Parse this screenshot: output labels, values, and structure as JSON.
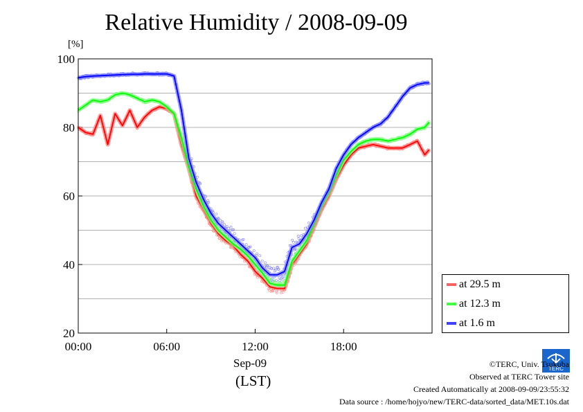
{
  "title": "Relative Humidity / 2008-09-09",
  "ylabel_unit": "[%]",
  "x_date": "Sep-09",
  "x_zone": "(LST)",
  "footer": {
    "copyright": "©TERC, Univ. Tsukuba",
    "site": "Observed at TERC Tower site",
    "created": "Created Automatically at 2008-09-09/23:55:32",
    "source": "Data source : /home/hojyo/new/TERC-data/sorted_data/MET.10s.dat"
  },
  "logo_text": "TERC",
  "chart_data": {
    "type": "line",
    "title": "Relative Humidity / 2008-09-09",
    "ylabel": "[%]",
    "xlabel": "Sep-09 (LST)",
    "xlim": [
      0,
      24
    ],
    "ylim": [
      20,
      100
    ],
    "x_ticks": [
      0,
      6,
      12,
      18
    ],
    "x_tick_labels": [
      "00:00",
      "06:00",
      "12:00",
      "18:00"
    ],
    "y_ticks": [
      20,
      40,
      60,
      80,
      100
    ],
    "y_tick_labels": [
      "20",
      "40",
      "60",
      "80",
      "100"
    ],
    "grid": "horizontal",
    "legend_position": "bottom-right, outside",
    "x": [
      0,
      0.5,
      1,
      1.5,
      2,
      2.5,
      3,
      3.5,
      4,
      4.5,
      5,
      5.5,
      6,
      6.5,
      7,
      7.5,
      8,
      8.5,
      9,
      9.5,
      10,
      10.5,
      11,
      11.5,
      12,
      12.5,
      13,
      13.5,
      14,
      14.5,
      15,
      15.5,
      16,
      16.5,
      17,
      17.5,
      18,
      18.5,
      19,
      19.5,
      20,
      20.5,
      21,
      21.5,
      22,
      22.5,
      23,
      23.5,
      23.8
    ],
    "series": [
      {
        "name": "at 29.5 m",
        "color": "#ff0000",
        "values": [
          80,
          78.5,
          78,
          83.5,
          75,
          84,
          80.5,
          85,
          80,
          83,
          85,
          86,
          85.5,
          84,
          75,
          68,
          60,
          56,
          52,
          49,
          47,
          45.5,
          43,
          41,
          38,
          36,
          33.5,
          33,
          33,
          40,
          43,
          46,
          51,
          56,
          60,
          65,
          69,
          72,
          74,
          74.5,
          75,
          74.5,
          74,
          74,
          74,
          75,
          76,
          72,
          73.5
        ]
      },
      {
        "name": "at 12.3 m",
        "color": "#00ff00",
        "values": [
          85,
          86.5,
          88,
          87.5,
          88,
          89.5,
          90,
          89.5,
          88.5,
          87.5,
          88,
          87.5,
          86,
          84,
          77,
          68.5,
          62,
          57,
          53,
          50,
          48,
          46,
          44.5,
          42.5,
          40,
          37.5,
          34.5,
          34,
          34,
          41,
          44,
          47,
          52,
          57,
          61,
          66,
          70.5,
          73,
          75,
          76,
          76.5,
          76.5,
          76,
          76.5,
          77,
          78,
          79.5,
          80,
          81.5
        ]
      },
      {
        "name": "at 1.6 m",
        "color": "#0000ff",
        "values": [
          94.5,
          94.8,
          95,
          95.1,
          95.2,
          95.3,
          95.4,
          95.5,
          95.5,
          95.6,
          95.6,
          95.6,
          95.6,
          95,
          85,
          71,
          64,
          59,
          55,
          52,
          50,
          48,
          46,
          44,
          42,
          39,
          37,
          37,
          38,
          45,
          46,
          49,
          53,
          58,
          62,
          68,
          72,
          75,
          77,
          78.5,
          80,
          81,
          83,
          86,
          89,
          91.5,
          92.5,
          93,
          93
        ]
      }
    ]
  }
}
